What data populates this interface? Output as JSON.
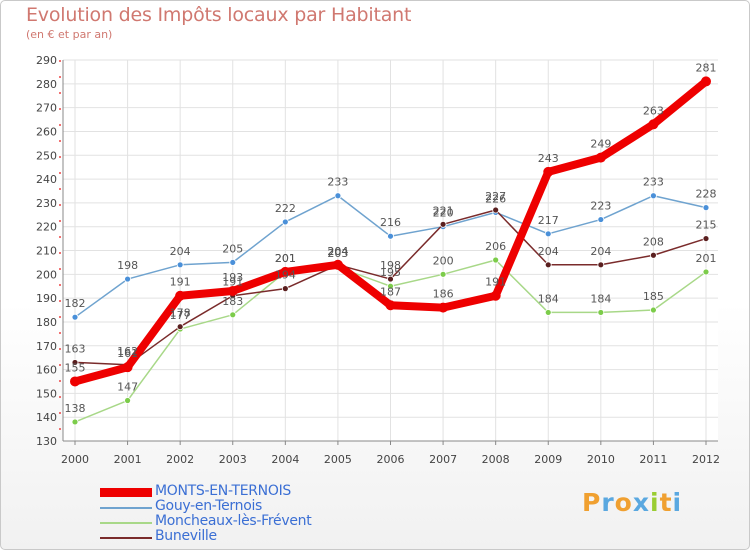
{
  "title": "Evolution des Impôts locaux par Habitant",
  "subtitle": "(en € et par an)",
  "logo": {
    "letters": [
      "P",
      "r",
      "o",
      "x",
      "i",
      "t",
      "i"
    ],
    "colors": [
      "#f0a030",
      "#5aa8e0",
      "#f0a030",
      "#5aa8e0",
      "#9acd32",
      "#f0a030",
      "#5aa8e0"
    ]
  },
  "chart_data": {
    "type": "line",
    "title": "Evolution des Impôts locaux par Habitant",
    "ylabel": "(en € et par an)",
    "xlabel": "",
    "ylim": [
      130,
      290
    ],
    "yticks": [
      130,
      140,
      150,
      160,
      170,
      180,
      190,
      200,
      210,
      220,
      230,
      240,
      250,
      260,
      270,
      280,
      290
    ],
    "categories": [
      "2000",
      "2001",
      "2002",
      "2003",
      "2004",
      "2005",
      "2006",
      "2007",
      "2008",
      "2009",
      "2010",
      "2011",
      "2012"
    ],
    "grid": true,
    "legend_position": "bottom-left",
    "series": [
      {
        "name": "Gouy-en-Ternois",
        "color": "#6fa3cf",
        "dot": "#4a90d9",
        "values": [
          182,
          198,
          204,
          205,
          222,
          233,
          216,
          220,
          226,
          217,
          223,
          233,
          228
        ],
        "labels": [
          "182",
          "198",
          "204",
          "205",
          "222",
          "233",
          "216",
          "220",
          "226",
          "217",
          "223",
          "233",
          "228"
        ]
      },
      {
        "name": "Moncheaux-lès-Frévent",
        "color": "#a8d888",
        "dot": "#7ccc4a",
        "values": [
          138,
          147,
          177,
          183,
          201,
          203,
          195,
          200,
          206,
          184,
          184,
          185,
          201
        ],
        "labels": [
          "138",
          "147",
          "177",
          "183",
          "201",
          "203",
          "195",
          "200",
          "206",
          "184",
          "184",
          "185",
          "201"
        ]
      },
      {
        "name": "Buneville",
        "color": "#7a2b2b",
        "dot": "#5a1f1f",
        "values": [
          163,
          162,
          178,
          191,
          194,
          204,
          198,
          221,
          227,
          204,
          204,
          208,
          215
        ],
        "labels": [
          "163",
          "162",
          "178",
          "191",
          "194",
          "204",
          "198",
          "221",
          "227",
          "204",
          "204",
          "208",
          "215"
        ]
      },
      {
        "name": "MONTS-EN-TERNOIS",
        "color": "#ee0000",
        "dot": "#ee0000",
        "main": true,
        "values": [
          155,
          161,
          191,
          193,
          201,
          204,
          187,
          186,
          191,
          243,
          249,
          263,
          281
        ],
        "labels": [
          "155",
          "161",
          "191",
          "193",
          "201",
          "204",
          "187",
          "186",
          "191",
          "243",
          "249",
          "263",
          "281"
        ]
      }
    ],
    "legend": [
      {
        "name": "MONTS-EN-TERNOIS",
        "color": "#ee0000",
        "text_color": "#3b6fd4"
      },
      {
        "name": "Gouy-en-Ternois",
        "color": "#6fa3cf",
        "text_color": "#3b6fd4"
      },
      {
        "name": "Moncheaux-lès-Frévent",
        "color": "#a8d888",
        "text_color": "#3b6fd4"
      },
      {
        "name": "Buneville",
        "color": "#7a2b2b",
        "text_color": "#3b6fd4"
      }
    ]
  }
}
